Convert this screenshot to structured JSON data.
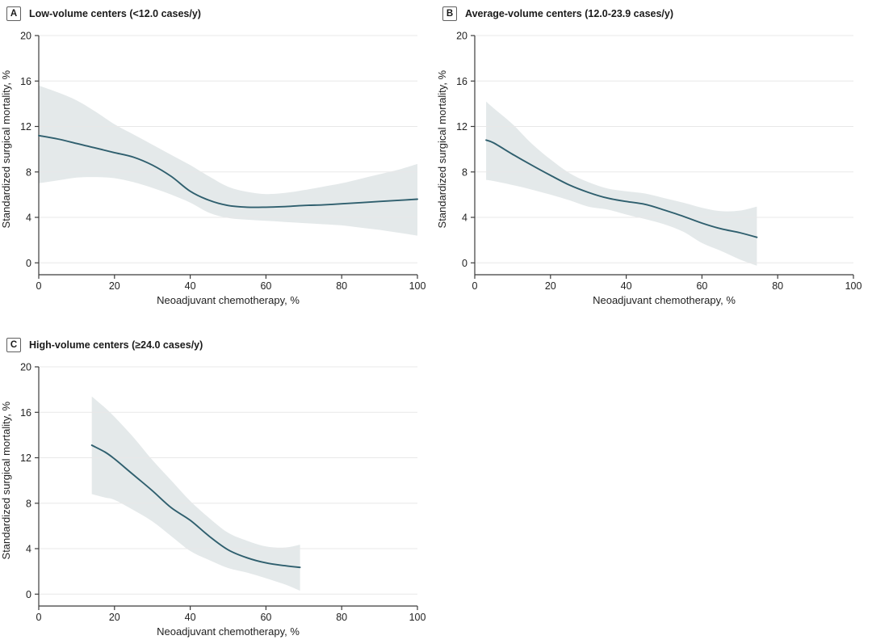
{
  "colors": {
    "line": "#2f5f6e",
    "band": "#e4e9ea",
    "grid": "#e8e8e8",
    "axis": "#3c3c3c",
    "text": "#222222"
  },
  "chart_data": [
    {
      "type": "line",
      "panel": "A",
      "title": "Low-volume centers (<12.0 cases/y)",
      "xlabel": "Neoadjuvant chemotherapy, %",
      "ylabel": "Standardized surgical mortality, %",
      "xlim": [
        0,
        100
      ],
      "ylim": [
        0,
        20
      ],
      "xticks": [
        0,
        20,
        40,
        60,
        80,
        100
      ],
      "yticks": [
        0,
        4,
        8,
        12,
        16,
        20
      ],
      "grid": true,
      "legend": "none",
      "series": [
        {
          "name": "Smoothed standardized surgical mortality",
          "x": [
            0,
            5,
            10,
            15,
            20,
            25,
            30,
            35,
            40,
            45,
            50,
            55,
            60,
            65,
            70,
            75,
            80,
            85,
            90,
            95,
            100
          ],
          "y": [
            11.2,
            10.9,
            10.5,
            10.1,
            9.7,
            9.3,
            8.6,
            7.6,
            6.3,
            5.5,
            5.05,
            4.9,
            4.9,
            4.95,
            5.05,
            5.1,
            5.2,
            5.3,
            5.4,
            5.5,
            5.6
          ]
        }
      ],
      "band": {
        "name": "95% CI",
        "x": [
          0,
          5,
          10,
          15,
          20,
          25,
          30,
          35,
          40,
          45,
          50,
          55,
          60,
          65,
          70,
          75,
          80,
          85,
          90,
          95,
          100
        ],
        "upper": [
          15.6,
          15.0,
          14.3,
          13.3,
          12.2,
          11.3,
          10.4,
          9.5,
          8.6,
          7.6,
          6.7,
          6.25,
          6.05,
          6.15,
          6.4,
          6.7,
          7.0,
          7.4,
          7.8,
          8.2,
          8.7
        ],
        "lower": [
          7.0,
          7.25,
          7.5,
          7.55,
          7.45,
          7.1,
          6.6,
          6.0,
          5.3,
          4.4,
          3.95,
          3.8,
          3.7,
          3.6,
          3.5,
          3.4,
          3.3,
          3.1,
          2.9,
          2.65,
          2.4
        ]
      }
    },
    {
      "type": "line",
      "panel": "B",
      "title": "Average-volume centers (12.0-23.9 cases/y)",
      "xlabel": "Neoadjuvant chemotherapy, %",
      "ylabel": "Standardized surgical mortality, %",
      "xlim": [
        0,
        100
      ],
      "ylim": [
        0,
        20
      ],
      "xticks": [
        0,
        20,
        40,
        60,
        80,
        100
      ],
      "yticks": [
        0,
        4,
        8,
        12,
        16,
        20
      ],
      "grid": true,
      "legend": "none",
      "series": [
        {
          "name": "Smoothed standardized surgical mortality",
          "x": [
            3,
            5,
            10,
            15,
            20,
            25,
            30,
            35,
            40,
            45,
            50,
            55,
            60,
            65,
            70,
            74.5
          ],
          "y": [
            10.8,
            10.55,
            9.55,
            8.6,
            7.7,
            6.85,
            6.2,
            5.7,
            5.4,
            5.15,
            4.65,
            4.1,
            3.5,
            3.0,
            2.65,
            2.25
          ]
        }
      ],
      "band": {
        "name": "95% CI",
        "x": [
          3,
          5,
          10,
          15,
          20,
          25,
          30,
          35,
          40,
          45,
          50,
          55,
          60,
          65,
          70,
          74.5
        ],
        "upper": [
          14.2,
          13.6,
          12.2,
          10.5,
          9.1,
          7.9,
          7.1,
          6.55,
          6.3,
          6.1,
          5.7,
          5.3,
          4.85,
          4.55,
          4.6,
          4.95
        ],
        "lower": [
          7.3,
          7.2,
          6.85,
          6.45,
          6.0,
          5.5,
          4.95,
          4.7,
          4.25,
          3.85,
          3.4,
          2.75,
          1.75,
          1.05,
          0.3,
          -0.25
        ]
      }
    },
    {
      "type": "line",
      "panel": "C",
      "title": "High-volume centers (≥24.0 cases/y)",
      "xlabel": "Neoadjuvant chemotherapy, %",
      "ylabel": "Standardized surgical mortality, %",
      "xlim": [
        0,
        100
      ],
      "ylim": [
        0,
        20
      ],
      "xticks": [
        0,
        20,
        40,
        60,
        80,
        100
      ],
      "yticks": [
        0,
        4,
        8,
        12,
        16,
        20
      ],
      "grid": true,
      "legend": "none",
      "series": [
        {
          "name": "Smoothed standardized surgical mortality",
          "x": [
            14,
            17.5,
            20,
            25,
            30,
            35,
            40,
            45,
            50,
            55,
            60,
            65,
            69
          ],
          "y": [
            13.1,
            12.5,
            11.9,
            10.5,
            9.1,
            7.6,
            6.5,
            5.1,
            3.9,
            3.2,
            2.75,
            2.5,
            2.35
          ]
        }
      ],
      "band": {
        "name": "95% CI",
        "x": [
          14,
          17.5,
          20,
          25,
          30,
          35,
          40,
          45,
          50,
          55,
          60,
          65,
          69
        ],
        "upper": [
          17.4,
          16.4,
          15.6,
          13.8,
          11.8,
          10.0,
          8.2,
          6.7,
          5.4,
          4.7,
          4.2,
          4.1,
          4.35
        ],
        "lower": [
          8.8,
          8.5,
          8.3,
          7.4,
          6.4,
          5.1,
          3.8,
          3.0,
          2.3,
          1.9,
          1.4,
          0.85,
          0.3
        ]
      }
    }
  ]
}
